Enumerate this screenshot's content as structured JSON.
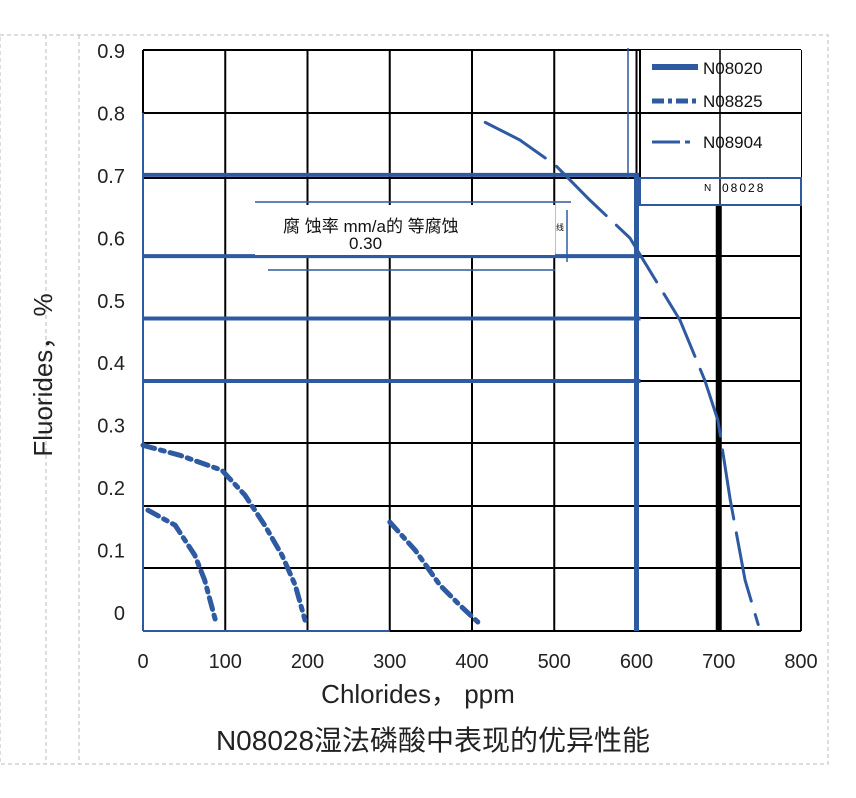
{
  "chart_data": {
    "type": "line",
    "title": "N08028湿法磷酸中表现的优异性能",
    "xlabel": "Chlorides， ppm",
    "ylabel": "Fluorides， %",
    "xlim": [
      0,
      800
    ],
    "ylim": [
      0,
      0.9
    ],
    "x_ticks": [
      "0",
      "100",
      "200",
      "300",
      "400",
      "500",
      "600",
      "700",
      "800"
    ],
    "y_ticks": [
      "0.9",
      "0.8",
      "0.7",
      "0.6",
      "0.5",
      "0.4",
      "0.3",
      "0.2",
      "0.1",
      "0"
    ],
    "grid": true,
    "legend_placement": "top-right",
    "legend": [
      {
        "name": "N08020",
        "style": "solid-thick"
      },
      {
        "name": "N08825",
        "style": "dash-dot"
      },
      {
        "name": "N08904",
        "style": "long-dash"
      }
    ],
    "legend_extra": {
      "prefix": "N",
      "code": "08028"
    },
    "annotation": {
      "text": "腐 蚀率 mm/a的 等腐蚀",
      "suffix": "线",
      "value": "0.30"
    },
    "series": [
      {
        "style": "dash-dot",
        "x": [
          0,
          45,
          96,
          124,
          148,
          169,
          185,
          197
        ],
        "y": [
          0.267,
          0.251,
          0.227,
          0.187,
          0.139,
          0.091,
          0.043,
          -0.013
        ]
      },
      {
        "style": "dash-dot",
        "x": [
          6,
          39,
          63,
          75,
          88
        ],
        "y": [
          0.163,
          0.139,
          0.091,
          0.051,
          -0.013
        ]
      },
      {
        "style": "dash-dot",
        "x": [
          300,
          331,
          361,
          385,
          407
        ],
        "y": [
          0.144,
          0.099,
          0.043,
          0.011,
          -0.016
        ]
      },
      {
        "style": "long-dash",
        "x": [
          416,
          458,
          501,
          543,
          592,
          610,
          653,
          683,
          699,
          714,
          732,
          748
        ],
        "y": [
          0.784,
          0.756,
          0.716,
          0.66,
          0.599,
          0.56,
          0.467,
          0.371,
          0.307,
          0.179,
          0.051,
          -0.02
        ]
      }
    ],
    "boundary_lines": {
      "horizontal_y": [
        0.7,
        0.57,
        0.47,
        0.37
      ],
      "vertical_x": [
        600,
        700
      ]
    },
    "colors": {
      "series": "#2d5aa0",
      "grid": "#000000",
      "text": "#222222"
    }
  }
}
